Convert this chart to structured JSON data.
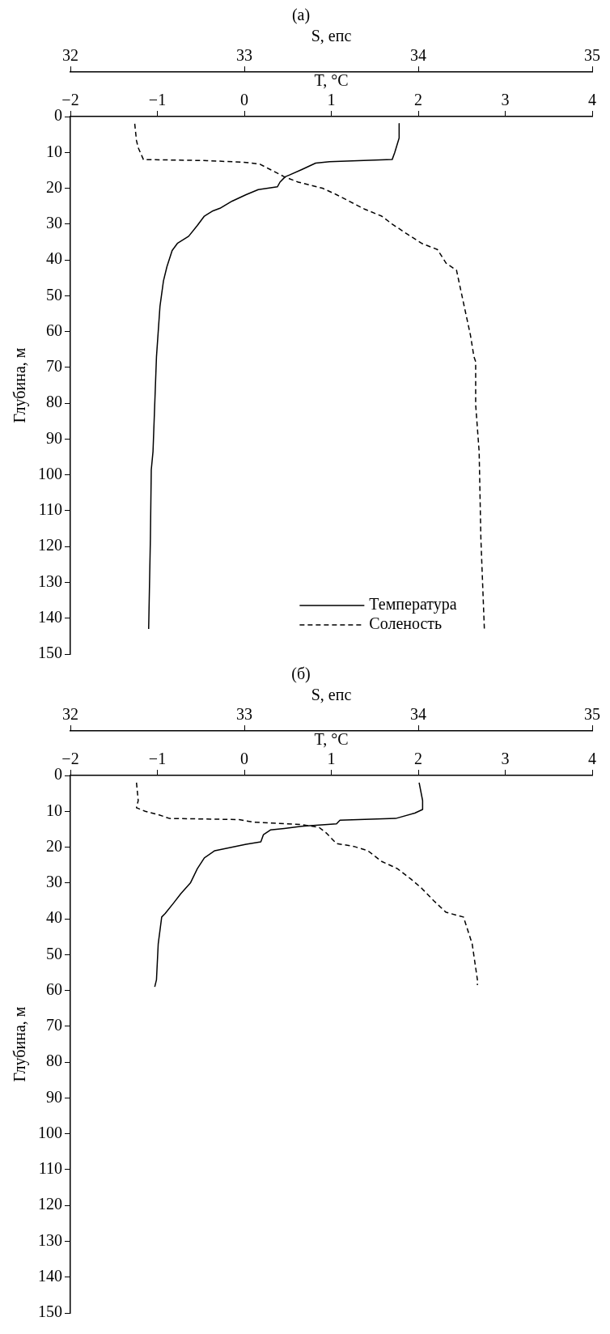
{
  "chart_data": [
    {
      "type": "line",
      "title": "(a)",
      "xlabel": "T, °C",
      "x2label": "S, епс",
      "ylabel": "Глубина, м",
      "xlim": [
        -2,
        4
      ],
      "xticks": [
        -2,
        -1,
        0,
        1,
        2,
        3,
        4
      ],
      "x2lim": [
        32,
        35
      ],
      "x2ticks": [
        32,
        33,
        34,
        35
      ],
      "ylim": [
        150,
        0
      ],
      "yticks": [
        0,
        10,
        20,
        30,
        40,
        50,
        60,
        70,
        80,
        90,
        100,
        110,
        120,
        130,
        140,
        150
      ],
      "legend": "bottom",
      "marker": "none",
      "series": [
        {
          "name": "Температура",
          "color": "#000000",
          "line_style": "solid",
          "x": [
            1.78,
            1.78,
            1.73,
            1.7,
            0.98,
            0.82,
            0.66,
            0.52,
            0.47,
            0.41,
            0.38,
            0.16,
            0.02,
            -0.14,
            -0.28,
            -0.36,
            -0.46,
            -0.54,
            -0.64,
            -0.77,
            -0.83,
            -0.89,
            -0.93,
            -0.97,
            -0.99,
            -1.01,
            -1.05,
            -1.07,
            -1.08,
            -1.1
          ],
          "values": [
            2,
            6,
            10,
            12,
            12.6,
            13,
            14.8,
            16.3,
            16.8,
            18.3,
            19.6,
            20.4,
            21.8,
            23.6,
            25.6,
            26.3,
            27.8,
            30.4,
            33.4,
            35.4,
            37.4,
            41.9,
            45.9,
            53,
            60,
            67,
            93.5,
            98.6,
            117.7,
            143
          ]
        },
        {
          "name": "Соленость",
          "color": "#000000",
          "line_style": "dashed",
          "axis": "x2",
          "x": [
            32.37,
            32.38,
            32.39,
            32.42,
            32.79,
            33.01,
            33.09,
            33.15,
            33.23,
            33.31,
            33.45,
            33.53,
            33.61,
            33.69,
            33.79,
            33.85,
            33.94,
            34.02,
            34.11,
            34.16,
            34.22,
            34.26,
            34.3,
            34.32,
            34.33,
            34.33,
            34.35,
            34.36,
            34.38
          ],
          "values": [
            2,
            6.7,
            8.7,
            12,
            12.3,
            12.8,
            13.3,
            14.8,
            16.8,
            18.3,
            20,
            21.8,
            23.8,
            25.8,
            27.8,
            30,
            32.9,
            35.4,
            37.1,
            40.9,
            42.9,
            52,
            61,
            67,
            68.4,
            80.4,
            93.5,
            117.7,
            143
          ]
        }
      ]
    },
    {
      "type": "line",
      "title": "(б)",
      "xlabel": "T, °C",
      "x2label": "S, епс",
      "ylabel": "Глубина, м",
      "xlim": [
        -2,
        4
      ],
      "xticks": [
        -2,
        -1,
        0,
        1,
        2,
        3,
        4
      ],
      "x2lim": [
        32,
        35
      ],
      "x2ticks": [
        32,
        33,
        34,
        35
      ],
      "ylim": [
        150,
        0
      ],
      "yticks": [
        0,
        10,
        20,
        30,
        40,
        50,
        60,
        70,
        80,
        90,
        100,
        110,
        120,
        130,
        140,
        150
      ],
      "marker": "none",
      "series": [
        {
          "color": "#000000",
          "line_style": "solid",
          "x": [
            2.01,
            2.05,
            2.05,
            1.96,
            1.74,
            1.1,
            1.06,
            0.66,
            0.46,
            0.3,
            0.22,
            0.19,
            0.02,
            -0.34,
            -0.46,
            -0.54,
            -0.62,
            -0.73,
            -0.81,
            -0.91,
            -0.95,
            -0.99,
            -1.01,
            -1.03
          ],
          "values": [
            2,
            7,
            9.5,
            10.5,
            12,
            12.5,
            13.5,
            14.2,
            14.8,
            15.2,
            16.5,
            18.5,
            19.2,
            21,
            23,
            26,
            30,
            33,
            35.5,
            38.5,
            39.5,
            47,
            57,
            59
          ]
        },
        {
          "color": "#000000",
          "line_style": "dashed",
          "axis": "x2",
          "x": [
            32.38,
            32.39,
            32.38,
            32.43,
            32.51,
            32.57,
            32.97,
            33.05,
            33.33,
            33.43,
            33.47,
            33.53,
            33.63,
            33.71,
            33.79,
            33.88,
            33.96,
            34.02,
            34.09,
            34.16,
            34.26,
            34.31,
            34.34,
            34.34
          ],
          "values": [
            2,
            7,
            9,
            10,
            11,
            12,
            12.3,
            13,
            13.7,
            14.5,
            16,
            19,
            19.8,
            21,
            24,
            26,
            29,
            31.5,
            35,
            38.2,
            39.5,
            47,
            57,
            58.5
          ]
        }
      ]
    }
  ]
}
